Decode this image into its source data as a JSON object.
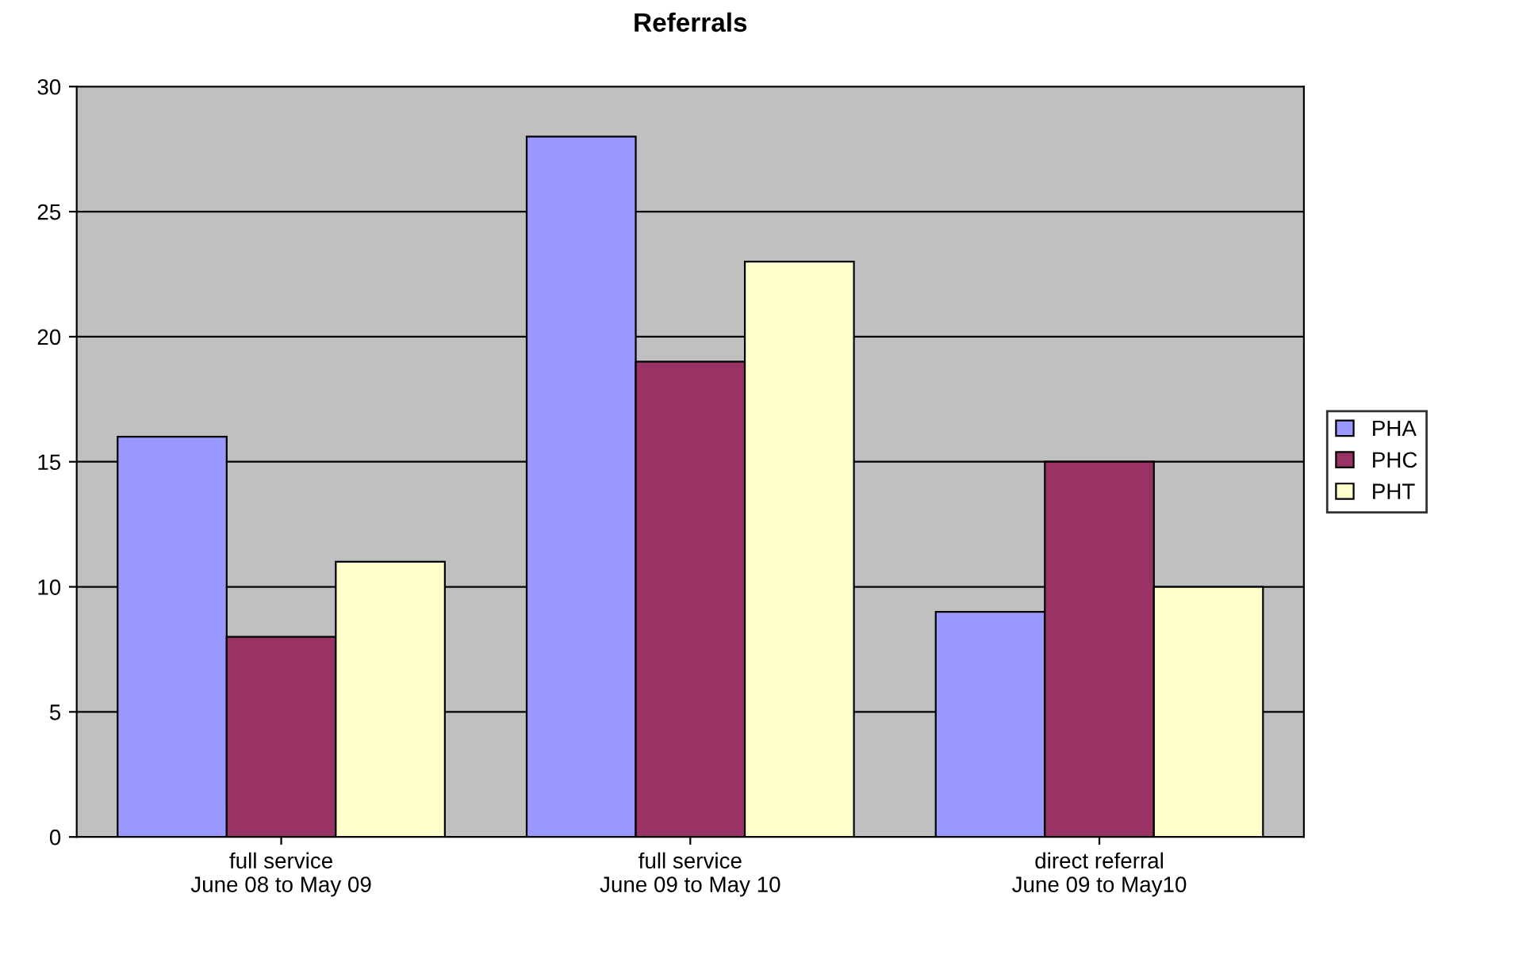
{
  "chart_data": {
    "type": "bar",
    "title": "Referrals",
    "categories": [
      "full service\nJune 08 to May 09",
      "full service\nJune 09 to May 10",
      "direct referral\nJune 09 to May10"
    ],
    "series": [
      {
        "name": "PHA",
        "color": "#9999ff",
        "values": [
          16,
          28,
          9
        ]
      },
      {
        "name": "PHC",
        "color": "#993366",
        "values": [
          8,
          19,
          15
        ]
      },
      {
        "name": "PHT",
        "color": "#ffffcc",
        "values": [
          11,
          23,
          10
        ]
      }
    ],
    "ylim": [
      0,
      30
    ],
    "yticks": [
      0,
      5,
      10,
      15,
      20,
      25,
      30
    ],
    "grid": "y",
    "legend": "right"
  }
}
